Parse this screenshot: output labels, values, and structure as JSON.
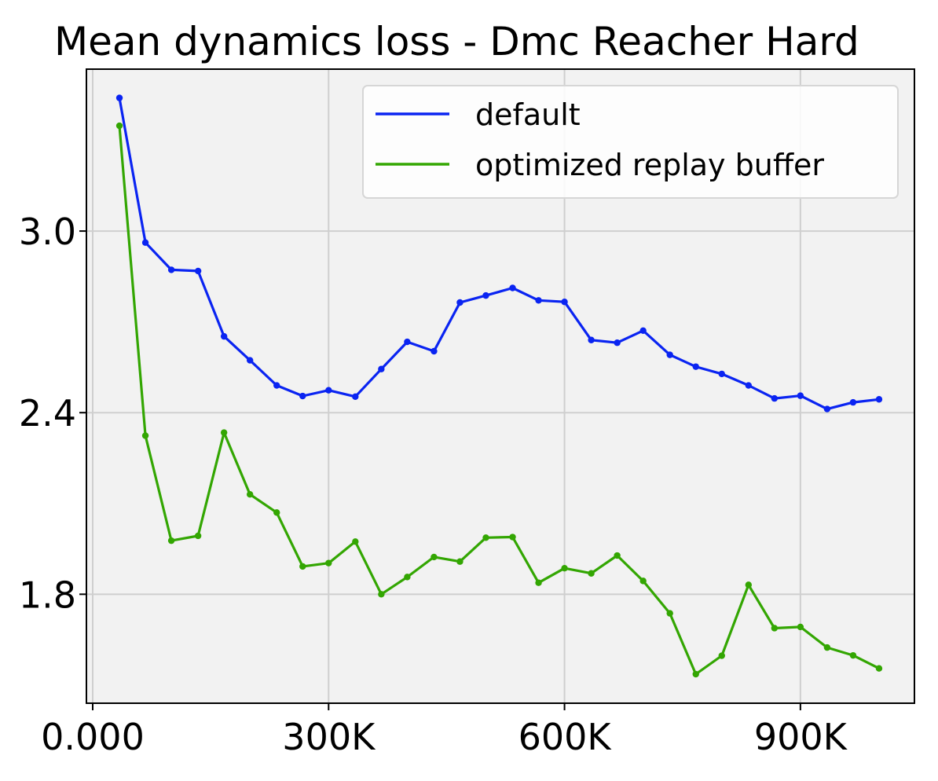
{
  "chart_data": {
    "type": "line",
    "title": "Mean dynamics loss - Dmc Reacher Hard",
    "xlabel": "",
    "ylabel": "",
    "xlim": [
      -8000,
      1045000
    ],
    "ylim": [
      1.44,
      3.535
    ],
    "x_ticks": [
      {
        "value": 0,
        "label": "0.000"
      },
      {
        "value": 300000,
        "label": "300K"
      },
      {
        "value": 600000,
        "label": "600K"
      },
      {
        "value": 900000,
        "label": "900K"
      }
    ],
    "y_ticks": [
      {
        "value": 1.8,
        "label": "1.8"
      },
      {
        "value": 2.4,
        "label": "2.4"
      },
      {
        "value": 3.0,
        "label": "3.0"
      }
    ],
    "grid": true,
    "legend_position": "top-right",
    "series": [
      {
        "name": "default",
        "color": "#0a24f2",
        "x": [
          34000,
          67000,
          100000,
          134000,
          167000,
          200000,
          234000,
          267000,
          300000,
          334000,
          367000,
          400000,
          434000,
          467000,
          500000,
          534000,
          567000,
          600000,
          634000,
          667000,
          700000,
          734000,
          767000,
          800000,
          834000,
          867000,
          900000,
          934000,
          967000,
          1000000
        ],
        "y": [
          3.44,
          2.962,
          2.872,
          2.868,
          2.652,
          2.573,
          2.49,
          2.455,
          2.474,
          2.453,
          2.544,
          2.634,
          2.603,
          2.764,
          2.787,
          2.812,
          2.771,
          2.766,
          2.64,
          2.631,
          2.671,
          2.591,
          2.552,
          2.528,
          2.49,
          2.447,
          2.456,
          2.412,
          2.434,
          2.444
        ]
      },
      {
        "name": "optimized replay buffer",
        "color": "#33a602",
        "x": [
          34000,
          67000,
          100000,
          134000,
          167000,
          200000,
          234000,
          267000,
          300000,
          334000,
          367000,
          400000,
          434000,
          467000,
          500000,
          534000,
          567000,
          600000,
          634000,
          667000,
          700000,
          734000,
          767000,
          800000,
          834000,
          867000,
          900000,
          934000,
          967000,
          1000000
        ],
        "y": [
          3.348,
          2.324,
          1.977,
          1.993,
          2.334,
          2.13,
          2.07,
          1.892,
          1.903,
          1.974,
          1.8,
          1.857,
          1.923,
          1.908,
          1.987,
          1.989,
          1.838,
          1.886,
          1.869,
          1.928,
          1.844,
          1.737,
          1.536,
          1.597,
          1.831,
          1.688,
          1.692,
          1.624,
          1.598,
          1.555
        ]
      }
    ]
  }
}
